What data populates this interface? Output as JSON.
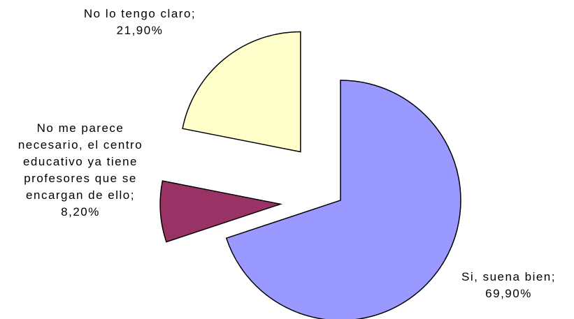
{
  "chart_data": {
    "type": "pie",
    "labels": [
      "Si, suena bien; 69,90%",
      "No me parece necesario, el centro educativo ya tiene profesores que se encargan de ello; 8,20%",
      "No lo tengo claro; 21,90%"
    ],
    "values": [
      69.9,
      8.2,
      21.9
    ],
    "colors": [
      "#9999ff",
      "#993366",
      "#ffffcc"
    ]
  }
}
